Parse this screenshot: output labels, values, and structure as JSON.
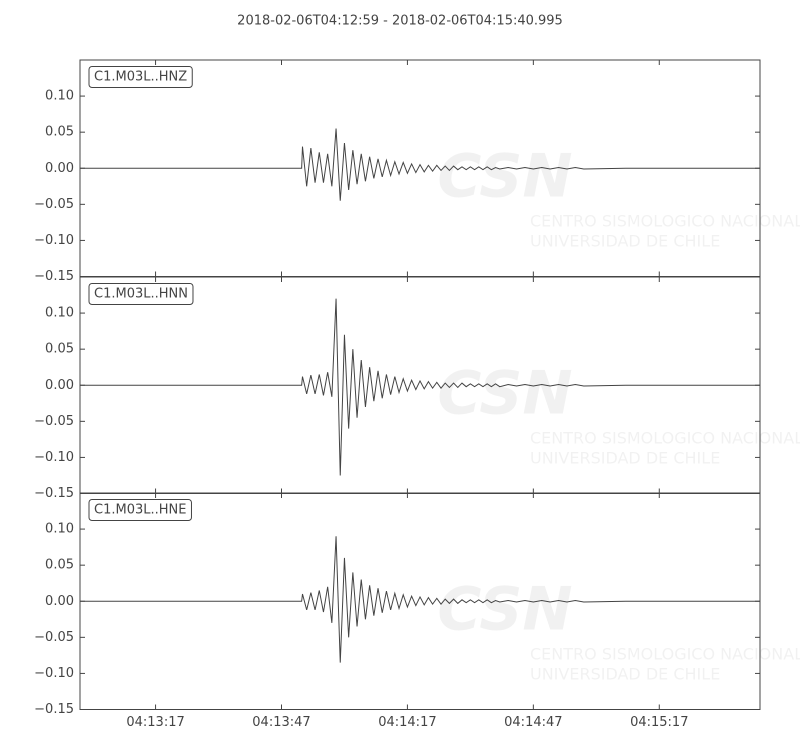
{
  "title": "2018-02-06T04:12:59  -  2018-02-06T04:15:40.995",
  "watermark": {
    "logo": "CSN",
    "lines": [
      "CENTRO SISMOLOGICO NACIONAL",
      "UNIVERSIDAD DE CHILE"
    ]
  },
  "chart_data": [
    {
      "type": "line",
      "x": [
        0,
        25,
        50,
        52.8,
        53,
        54,
        55,
        56,
        57,
        58,
        59,
        60,
        61,
        62,
        63,
        64,
        65,
        66,
        67,
        68,
        69,
        70,
        71,
        72,
        73,
        74,
        75,
        76,
        77,
        78,
        79,
        80,
        81,
        82,
        83,
        84,
        85,
        86,
        87,
        88,
        89,
        90,
        91,
        92,
        93,
        94,
        95,
        96,
        97,
        98,
        99,
        100,
        102,
        104,
        106,
        108,
        110,
        112,
        114,
        116,
        118,
        120,
        130,
        145,
        162
      ],
      "series": [
        {
          "name": "C1.M03L..HNZ",
          "color": "#444444",
          "values": [
            0,
            0,
            0,
            0,
            0.03,
            -0.025,
            0.028,
            -0.02,
            0.022,
            -0.02,
            0.02,
            -0.025,
            0.055,
            -0.045,
            0.035,
            -0.03,
            0.025,
            -0.022,
            0.02,
            -0.018,
            0.016,
            -0.014,
            0.013,
            -0.012,
            0.011,
            -0.01,
            0.009,
            -0.008,
            0.008,
            -0.007,
            0.006,
            -0.006,
            0.005,
            -0.005,
            0.004,
            -0.004,
            0.004,
            -0.003,
            0.003,
            -0.003,
            0.003,
            -0.002,
            0.002,
            -0.002,
            0.002,
            -0.002,
            0.002,
            -0.002,
            0.002,
            -0.002,
            0.001,
            -0.001,
            0.001,
            -0.001,
            0.001,
            -0.001,
            0.001,
            -0.001,
            0.001,
            -0.001,
            0.001,
            -0.001,
            0,
            0,
            0
          ]
        }
      ],
      "xlim": [
        0,
        161.995
      ],
      "xticks": [
        18,
        48,
        78,
        108,
        138
      ],
      "ylim": [
        -0.15,
        0.15
      ],
      "yticks": [
        {
          "value": -0.15,
          "label": "−0.15"
        },
        {
          "value": -0.1,
          "label": "−0.10"
        },
        {
          "value": -0.05,
          "label": "−0.05"
        },
        {
          "value": 0,
          "label": "0.00"
        },
        {
          "value": 0.05,
          "label": "0.05"
        },
        {
          "value": 0.1,
          "label": "0.10"
        }
      ]
    },
    {
      "type": "line",
      "x": [
        0,
        25,
        50,
        52.8,
        53,
        54,
        55,
        56,
        57,
        58,
        59,
        60,
        61,
        62,
        63,
        64,
        65,
        66,
        67,
        68,
        69,
        70,
        71,
        72,
        73,
        74,
        75,
        76,
        77,
        78,
        79,
        80,
        81,
        82,
        83,
        84,
        85,
        86,
        87,
        88,
        89,
        90,
        91,
        92,
        93,
        94,
        95,
        96,
        97,
        98,
        99,
        100,
        102,
        104,
        106,
        108,
        110,
        112,
        114,
        116,
        118,
        120,
        130,
        145,
        162
      ],
      "series": [
        {
          "name": "C1.M03L..HNN",
          "color": "#444444",
          "values": [
            0,
            0,
            0,
            0,
            0.012,
            -0.012,
            0.014,
            -0.012,
            0.015,
            -0.014,
            0.018,
            -0.016,
            0.12,
            -0.125,
            0.07,
            -0.06,
            0.05,
            -0.045,
            0.035,
            -0.03,
            0.025,
            -0.022,
            0.02,
            -0.018,
            0.015,
            -0.013,
            0.012,
            -0.01,
            0.009,
            -0.008,
            0.007,
            -0.006,
            0.006,
            -0.005,
            0.005,
            -0.004,
            0.004,
            -0.004,
            0.003,
            -0.003,
            0.003,
            -0.003,
            0.003,
            -0.002,
            0.002,
            -0.002,
            0.002,
            -0.002,
            0.002,
            -0.002,
            0.002,
            -0.002,
            0.001,
            -0.001,
            0.001,
            -0.001,
            0.001,
            -0.001,
            0.001,
            -0.001,
            0.001,
            -0.001,
            0,
            0,
            0
          ]
        }
      ],
      "xlim": [
        0,
        161.995
      ],
      "xticks": [
        18,
        48,
        78,
        108,
        138
      ],
      "ylim": [
        -0.15,
        0.15
      ],
      "yticks": [
        {
          "value": -0.15,
          "label": "−0.15"
        },
        {
          "value": -0.1,
          "label": "−0.10"
        },
        {
          "value": -0.05,
          "label": "−0.05"
        },
        {
          "value": 0,
          "label": "0.00"
        },
        {
          "value": 0.05,
          "label": "0.05"
        },
        {
          "value": 0.1,
          "label": "0.10"
        }
      ]
    },
    {
      "type": "line",
      "x": [
        0,
        25,
        50,
        52.8,
        53,
        54,
        55,
        56,
        57,
        58,
        59,
        60,
        61,
        62,
        63,
        64,
        65,
        66,
        67,
        68,
        69,
        70,
        71,
        72,
        73,
        74,
        75,
        76,
        77,
        78,
        79,
        80,
        81,
        82,
        83,
        84,
        85,
        86,
        87,
        88,
        89,
        90,
        91,
        92,
        93,
        94,
        95,
        96,
        97,
        98,
        99,
        100,
        102,
        104,
        106,
        108,
        110,
        112,
        114,
        116,
        118,
        120,
        130,
        145,
        162
      ],
      "series": [
        {
          "name": "C1.M03L..HNE",
          "color": "#444444",
          "values": [
            0,
            0,
            0,
            0,
            0.01,
            -0.012,
            0.012,
            -0.012,
            0.015,
            -0.015,
            0.02,
            -0.03,
            0.09,
            -0.085,
            0.06,
            -0.05,
            0.04,
            -0.035,
            0.03,
            -0.025,
            0.022,
            -0.02,
            0.018,
            -0.016,
            0.014,
            -0.012,
            0.011,
            -0.01,
            0.009,
            -0.008,
            0.007,
            -0.006,
            0.006,
            -0.005,
            0.005,
            -0.004,
            0.004,
            -0.004,
            0.003,
            -0.003,
            0.003,
            -0.003,
            0.002,
            -0.002,
            0.002,
            -0.002,
            0.002,
            -0.002,
            0.002,
            -0.002,
            0.001,
            -0.001,
            0.001,
            -0.001,
            0.001,
            -0.001,
            0.001,
            -0.001,
            0.001,
            -0.001,
            0.001,
            -0.001,
            0,
            0,
            0
          ]
        }
      ],
      "xlim": [
        0,
        161.995
      ],
      "xticks": [
        {
          "value": 18,
          "label": "04:13:17"
        },
        {
          "value": 48,
          "label": "04:13:47"
        },
        {
          "value": 78,
          "label": "04:14:17"
        },
        {
          "value": 108,
          "label": "04:14:47"
        },
        {
          "value": 138,
          "label": "04:15:17"
        }
      ],
      "ylim": [
        -0.15,
        0.15
      ],
      "yticks": [
        {
          "value": -0.15,
          "label": "−0.15"
        },
        {
          "value": -0.1,
          "label": "−0.10"
        },
        {
          "value": -0.05,
          "label": "−0.05"
        },
        {
          "value": 0,
          "label": "0.00"
        },
        {
          "value": 0.05,
          "label": "0.05"
        },
        {
          "value": 0.1,
          "label": "0.10"
        }
      ]
    }
  ]
}
